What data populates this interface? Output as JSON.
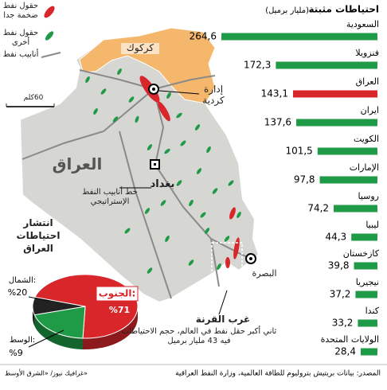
{
  "chart_data": [
    {
      "type": "bar",
      "orientation": "horizontal",
      "title": "احتياطات مثبتة",
      "subtitle": "(مليار برميل)",
      "categories": [
        "السعودية",
        "فنزويلا",
        "العراق",
        "ايران",
        "الكويت",
        "الإمارات",
        "روسيا",
        "ليبيا",
        "كازخستان",
        "نيجيريا",
        "كندا",
        "الولايات المتحدة"
      ],
      "values": [
        264.6,
        172.3,
        143.1,
        137.6,
        101.5,
        97.8,
        74.2,
        44.3,
        39.8,
        37.2,
        33.2,
        28.4
      ],
      "value_labels": [
        "264,6",
        "172,3",
        "143,1",
        "137,6",
        "101,5",
        "97,8",
        "74,2",
        "44,3",
        "39,8",
        "37,2",
        "33,2",
        "28,4"
      ],
      "colors": [
        "#1f9a46",
        "#1f9a46",
        "#d8262b",
        "#1f9a46",
        "#1f9a46",
        "#1f9a46",
        "#1f9a46",
        "#1f9a46",
        "#1f9a46",
        "#1f9a46",
        "#1f9a46",
        "#1f9a46"
      ]
    },
    {
      "type": "pie",
      "title": "انتشار احتياطات العراق",
      "categories": [
        "الجنوب:",
        "الشمال:",
        "الوسط:"
      ],
      "values": [
        71,
        20,
        9
      ],
      "value_labels": [
        "%71",
        "%20",
        "%9"
      ],
      "colors": [
        "#d8262b",
        "#1f9a46",
        "#222222"
      ]
    }
  ],
  "map": {
    "legend": [
      "حقول نفط ضخمة جدا",
      "حقول نفط أخرى",
      "أنابيب نفط"
    ],
    "scale": "60كلم",
    "labels": [
      "كركوك",
      "إدارة كردية",
      "العراق",
      "بغداد",
      "خط أنابيب النفط الإستراتيجي",
      "البصرة",
      "غرب القرنة"
    ],
    "annotation": "ثاني أكبر حقل نفط في العالم، حجم الاحتياطات فيه 43 مليار برميل"
  },
  "source": "المصدر: بيانات بريتيش بتروليوم للطاقة العالمية، وزارة النفط العراقية",
  "credit": "غرافيك نيوز/ «الشرق الأوسط»"
}
